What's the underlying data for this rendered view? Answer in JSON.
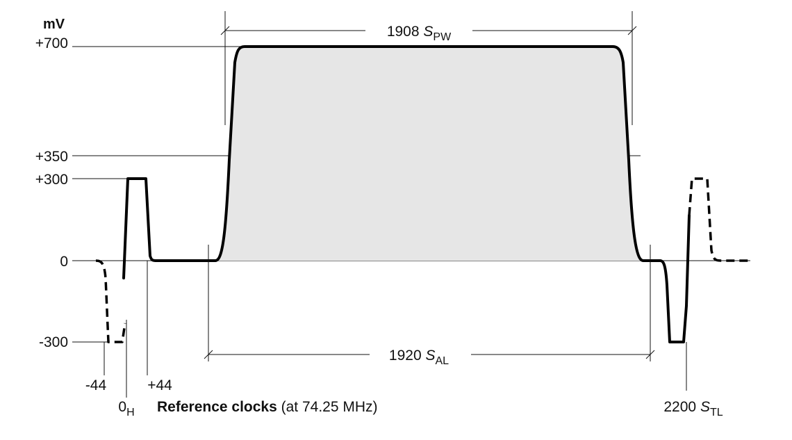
{
  "y_axis": {
    "unit": "mV",
    "ticks": [
      {
        "label": "+700",
        "value": 700
      },
      {
        "label": "+350",
        "value": 350
      },
      {
        "label": "+300",
        "value": 300
      },
      {
        "label": "0",
        "value": 0
      },
      {
        "label": "-300",
        "value": -300
      }
    ]
  },
  "x_axis": {
    "ticks": [
      {
        "label": "-44",
        "value": -44
      },
      {
        "label": "0",
        "sub": "H",
        "value": 0
      },
      {
        "label": "+44",
        "value": 44
      },
      {
        "label": "2200 ",
        "label_italic": "S",
        "sub": "TL",
        "value": 2200
      }
    ],
    "title_bold": "Reference clocks",
    "title_rest": " (at 74.25 MHz)"
  },
  "dimensions": {
    "top": {
      "value": "1908 ",
      "italic": "S",
      "sub": "PW"
    },
    "bottom": {
      "value": "1920 ",
      "italic": "S",
      "sub": "AL"
    }
  },
  "colors": {
    "line": "#000000",
    "pulse_fill": "#e6e6e6"
  }
}
